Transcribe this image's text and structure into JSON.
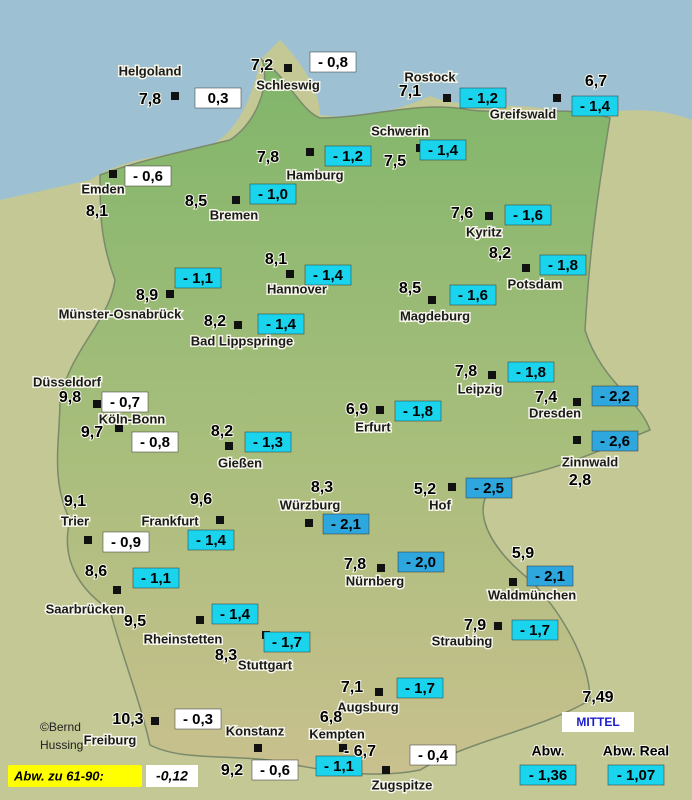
{
  "stations": [
    {
      "name": "Helgoland",
      "value": "7,8",
      "deviation": "0,3"
    },
    {
      "name": "Schleswig",
      "value": "7,2",
      "deviation": "- 0,8"
    },
    {
      "name": "Rostock",
      "value": "7,1",
      "deviation": "- 1,2"
    },
    {
      "name": "Greifswald",
      "value": "6,7",
      "deviation": "- 1,4"
    },
    {
      "name": "Schwerin",
      "value": "7,5",
      "deviation": "- 1,4"
    },
    {
      "name": "Hamburg",
      "value": "7,8",
      "deviation": "- 1,2"
    },
    {
      "name": "Emden",
      "value": "8,1",
      "deviation": "- 0,6"
    },
    {
      "name": "Bremen",
      "value": "8,5",
      "deviation": "- 1,0"
    },
    {
      "name": "Kyritz",
      "value": "7,6",
      "deviation": "- 1,6"
    },
    {
      "name": "Potsdam",
      "value": "8,2",
      "deviation": "- 1,8"
    },
    {
      "name": "Hannover",
      "value": "8,1",
      "deviation": "- 1,4"
    },
    {
      "name": "Münster-Osnabrück",
      "value": "8,9",
      "deviation": "- 1,1"
    },
    {
      "name": "Magdeburg",
      "value": "8,5",
      "deviation": "- 1,6"
    },
    {
      "name": "Bad Lippspringe",
      "value": "8,2",
      "deviation": "- 1,4"
    },
    {
      "name": "Leipzig",
      "value": "7,8",
      "deviation": "- 1,8"
    },
    {
      "name": "Dresden",
      "value": "7,4",
      "deviation": "- 2,2"
    },
    {
      "name": "Düsseldorf",
      "value": "9,8",
      "deviation": "- 0,7"
    },
    {
      "name": "Erfurt",
      "value": "6,9",
      "deviation": "- 1,8"
    },
    {
      "name": "Köln-Bonn",
      "value": "9,7",
      "deviation": "- 0,8"
    },
    {
      "name": "Zinnwald",
      "value": "2,8",
      "deviation": "- 2,6"
    },
    {
      "name": "Gießen",
      "value": "8,2",
      "deviation": "- 1,3"
    },
    {
      "name": "Hof",
      "value": "5,2",
      "deviation": "- 2,5"
    },
    {
      "name": "Würzburg",
      "value": "8,3",
      "deviation": "- 2,1"
    },
    {
      "name": "Trier",
      "value": "9,1",
      "deviation": "- 0,9"
    },
    {
      "name": "Frankfurt",
      "value": "9,6",
      "deviation": "- 1,4"
    },
    {
      "name": "Nürnberg",
      "value": "7,8",
      "deviation": "- 2,0"
    },
    {
      "name": "Waldmünchen",
      "value": "5,9",
      "deviation": "- 2,1"
    },
    {
      "name": "Saarbrücken",
      "value": "8,6",
      "deviation": "- 1,1"
    },
    {
      "name": "Rheinstetten",
      "value": "9,5",
      "deviation": "- 1,4"
    },
    {
      "name": "Stuttgart",
      "value": "8,3",
      "deviation": "- 1,7"
    },
    {
      "name": "Straubing",
      "value": "7,9",
      "deviation": "- 1,7"
    },
    {
      "name": "Augsburg",
      "value": "7,1",
      "deviation": "- 1,7"
    },
    {
      "name": "Freiburg",
      "value": "10,3",
      "deviation": "- 0,3"
    },
    {
      "name": "Kempten",
      "value": "6,8",
      "deviation": "- 1,1"
    },
    {
      "name": "Konstanz",
      "value": "9,2",
      "deviation": "- 0,6"
    },
    {
      "name": "Zugspitze",
      "value": "- 6,7",
      "deviation": "- 0,4"
    }
  ],
  "reference": {
    "label": "Abw. zu 61-90:",
    "value": "-0,12"
  },
  "credit": [
    "©Bernd",
    "Hussing"
  ],
  "mean": {
    "value": "7,49",
    "label": "MITTEL",
    "deviation_label": "Abw.",
    "deviation": "- 1,36",
    "real_label": "Abw. Real",
    "real_deviation": "- 1,07"
  }
}
